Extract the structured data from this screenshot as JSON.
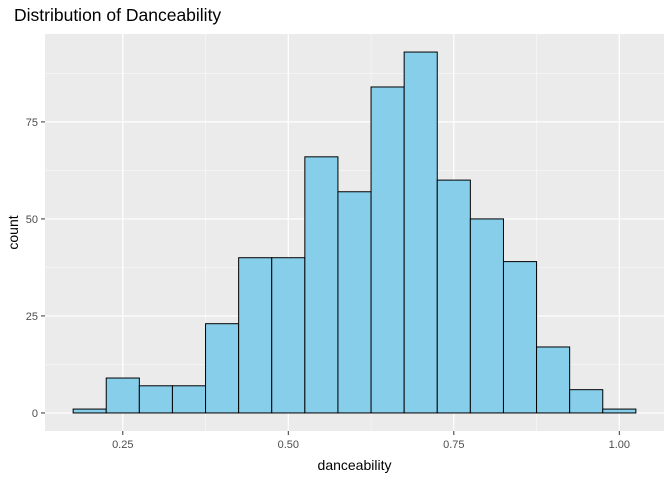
{
  "chart_data": {
    "type": "bar",
    "title": "Distribution of Danceability",
    "xlabel": "danceability",
    "ylabel": "count",
    "bin_width": 0.05,
    "bins": [
      {
        "x": 0.2,
        "count": 1
      },
      {
        "x": 0.25,
        "count": 9
      },
      {
        "x": 0.3,
        "count": 7
      },
      {
        "x": 0.35,
        "count": 7
      },
      {
        "x": 0.4,
        "count": 23
      },
      {
        "x": 0.45,
        "count": 40
      },
      {
        "x": 0.5,
        "count": 40
      },
      {
        "x": 0.55,
        "count": 66
      },
      {
        "x": 0.6,
        "count": 57
      },
      {
        "x": 0.65,
        "count": 84
      },
      {
        "x": 0.7,
        "count": 93
      },
      {
        "x": 0.75,
        "count": 60
      },
      {
        "x": 0.8,
        "count": 50
      },
      {
        "x": 0.85,
        "count": 39
      },
      {
        "x": 0.9,
        "count": 17
      },
      {
        "x": 0.95,
        "count": 6
      },
      {
        "x": 1.0,
        "count": 1
      }
    ],
    "xlim": [
      0.1325,
      1.0675
    ],
    "ylim": [
      -4.65,
      97.65
    ],
    "x_ticks": [
      0.25,
      0.5,
      0.75,
      1.0
    ],
    "x_tick_labels": [
      "0.25",
      "0.50",
      "0.75",
      "1.00"
    ],
    "y_ticks": [
      0,
      25,
      50,
      75
    ],
    "y_tick_labels": [
      "0",
      "25",
      "50",
      "75"
    ],
    "grid": true,
    "colors": {
      "bar_fill": "#87ceeb",
      "bar_stroke": "#000000",
      "panel_background": "#ebebeb",
      "grid_major": "#ffffff",
      "tick_text": "#4d4d4d"
    }
  }
}
